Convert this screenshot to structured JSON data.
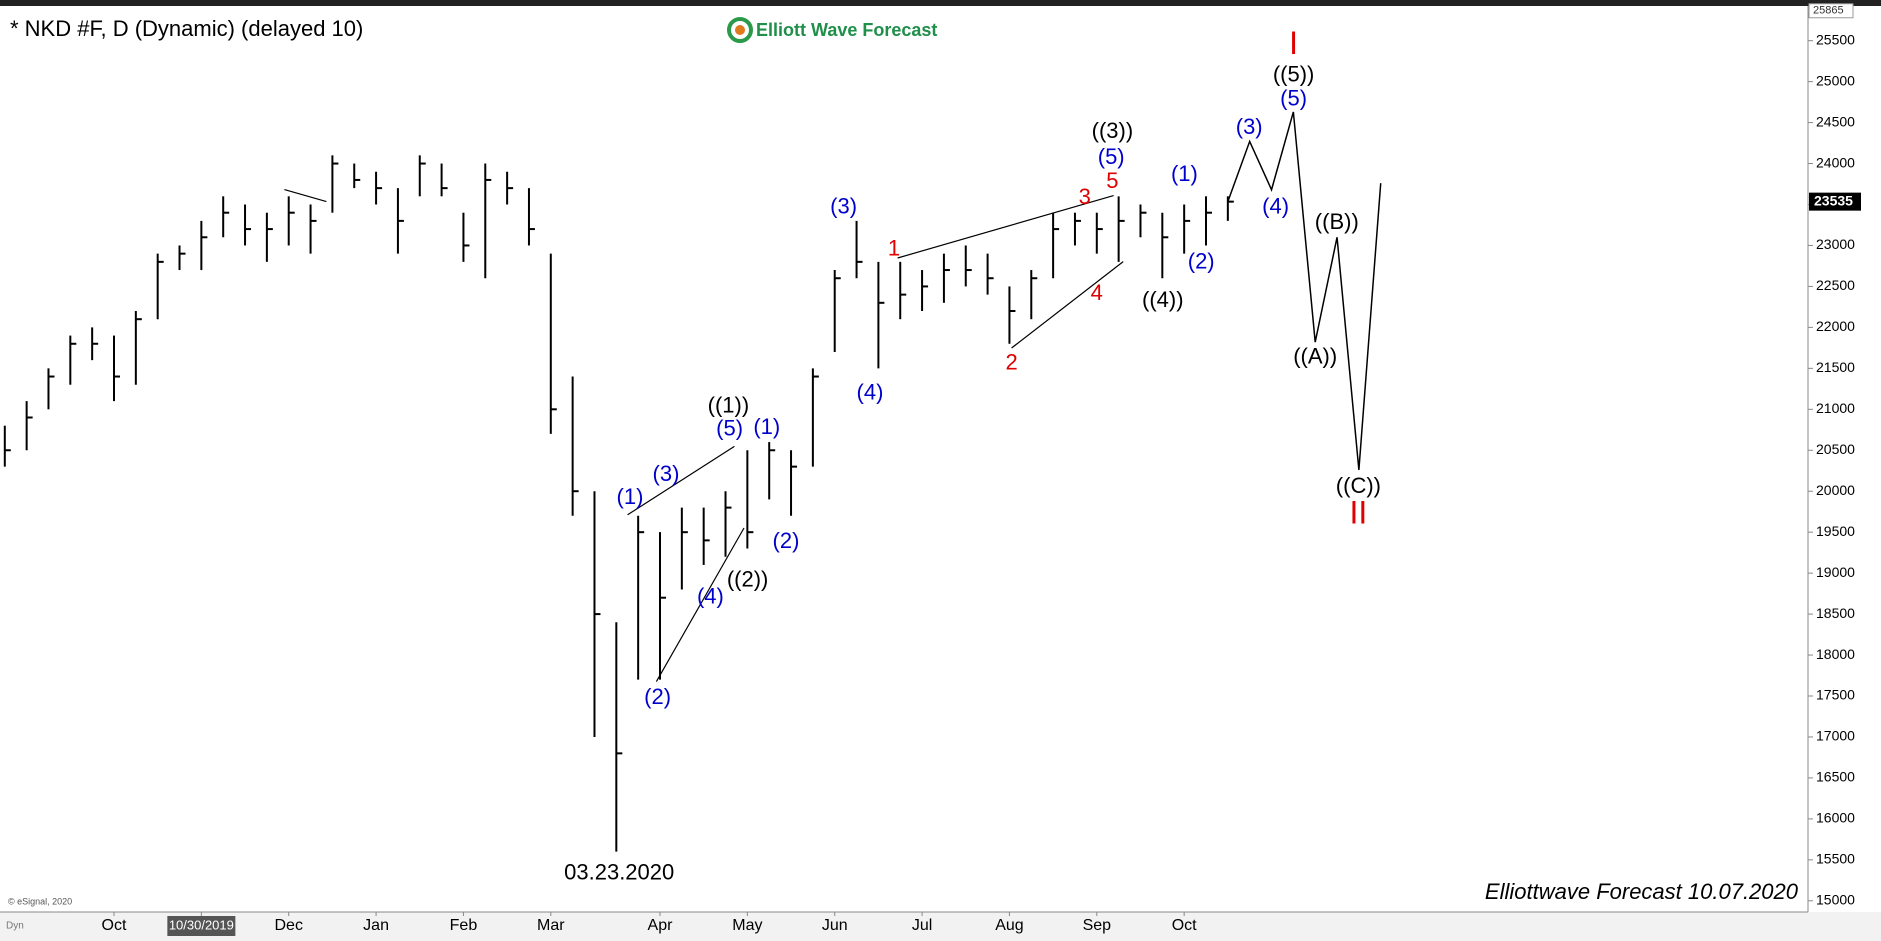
{
  "chart_data": {
    "type": "ohlc",
    "title": "* NKD #F, D (Dynamic) (delayed 10)",
    "logo": "Elliott Wave Forecast",
    "footer": "Elliottwave Forecast 10.07.2020",
    "copyright": "© eSignal, 2020",
    "corner_label": "Dyn",
    "low_date": "03.23.2020",
    "top_price": 25865,
    "bar_color": "#000000",
    "projection_color": "#000000",
    "ylim": [
      14900,
      25850
    ],
    "yticks": [
      15000,
      15500,
      16000,
      16500,
      17000,
      17500,
      18000,
      18500,
      19000,
      19500,
      20000,
      20500,
      21000,
      21500,
      22000,
      22500,
      23000,
      23500,
      24000,
      24500,
      25000,
      25500
    ],
    "categories": [
      null,
      null,
      null,
      null,
      null,
      "Oct",
      null,
      null,
      null,
      "10/30/2019",
      null,
      null,
      null,
      "Dec",
      null,
      null,
      null,
      "Jan",
      null,
      null,
      null,
      "Feb",
      null,
      null,
      null,
      "Mar",
      null,
      null,
      null,
      null,
      "Apr",
      null,
      null,
      null,
      "May",
      null,
      null,
      null,
      "Jun",
      null,
      null,
      null,
      "Jul",
      null,
      null,
      null,
      "Aug",
      null,
      null,
      null,
      "Sep",
      null,
      null,
      null,
      "Oct",
      null,
      null,
      null,
      null,
      null,
      null,
      null,
      null,
      null
    ],
    "high": [
      20800,
      21100,
      21500,
      21900,
      22000,
      21900,
      22200,
      22900,
      23000,
      23300,
      23600,
      23500,
      23400,
      23600,
      23500,
      24100,
      24000,
      23900,
      23700,
      24100,
      24000,
      23400,
      24000,
      23900,
      23700,
      22900,
      21400,
      20000,
      18400,
      19700,
      19500,
      19800,
      19800,
      20000,
      20500,
      20600,
      20500,
      21500,
      22700,
      23300,
      22800,
      22800,
      22700,
      22900,
      23000,
      22900,
      22500,
      22700,
      23400,
      23400,
      23400,
      23600,
      23500,
      23400,
      23500,
      23600,
      23600,
      null,
      null,
      null,
      null,
      null,
      null,
      null
    ],
    "low": [
      20300,
      20500,
      21000,
      21300,
      21600,
      21100,
      21300,
      22100,
      22700,
      22700,
      23100,
      23000,
      22800,
      23000,
      22900,
      23400,
      23700,
      23500,
      22900,
      23600,
      23600,
      22800,
      22600,
      23500,
      23000,
      20700,
      19700,
      17000,
      15600,
      17700,
      17700,
      18800,
      19100,
      19200,
      19300,
      19900,
      19700,
      20300,
      21700,
      22600,
      21500,
      22100,
      22200,
      22300,
      22500,
      22400,
      21800,
      22100,
      22600,
      23000,
      22900,
      22800,
      23100,
      22600,
      22900,
      23000,
      23300,
      null,
      null,
      null,
      null,
      null,
      null,
      null
    ],
    "close": [
      20500,
      20900,
      21400,
      21800,
      21800,
      21400,
      22100,
      22800,
      22900,
      23100,
      23400,
      23200,
      23200,
      23400,
      23300,
      24000,
      23800,
      23700,
      23300,
      24000,
      23700,
      23000,
      23800,
      23700,
      23200,
      21000,
      20000,
      18500,
      16800,
      19500,
      18700,
      19500,
      19400,
      19800,
      19500,
      20500,
      20300,
      21400,
      22600,
      22800,
      22300,
      22400,
      22500,
      22700,
      22700,
      22600,
      22200,
      22600,
      23200,
      23300,
      23200,
      23300,
      23400,
      23100,
      23300,
      23400,
      23535,
      null,
      null,
      null,
      null,
      null,
      null,
      null
    ],
    "projection": [
      null,
      null,
      null,
      null,
      null,
      null,
      null,
      null,
      null,
      null,
      null,
      null,
      null,
      null,
      null,
      null,
      null,
      null,
      null,
      null,
      null,
      null,
      null,
      null,
      null,
      null,
      null,
      null,
      null,
      null,
      null,
      null,
      null,
      null,
      null,
      null,
      null,
      null,
      null,
      null,
      null,
      null,
      null,
      null,
      null,
      null,
      null,
      null,
      null,
      null,
      null,
      null,
      null,
      null,
      null,
      null,
      23535,
      24270,
      23680,
      24630,
      21820,
      23100,
      20260,
      23760
    ],
    "annotations": [
      {
        "text": "(1)",
        "color": "#0000cc"
      },
      {
        "text": "(3)",
        "color": "#0000cc"
      },
      {
        "text": "(5)",
        "color": "#0000cc"
      },
      {
        "text": "((1))",
        "color": "#000000"
      },
      {
        "text": "(2)",
        "color": "#0000cc"
      },
      {
        "text": "(4)",
        "color": "#0000cc"
      },
      {
        "text": "((2))",
        "color": "#000000"
      },
      {
        "text": "(1)",
        "color": "#0000cc"
      },
      {
        "text": "(2)",
        "color": "#0000cc"
      },
      {
        "text": "(3)",
        "color": "#0000cc"
      },
      {
        "text": "(4)",
        "color": "#0000cc"
      },
      {
        "text": "1",
        "color": "#e00000"
      },
      {
        "text": "2",
        "color": "#e00000"
      },
      {
        "text": "3",
        "color": "#e00000"
      },
      {
        "text": "4",
        "color": "#e00000"
      },
      {
        "text": "5",
        "color": "#e00000"
      },
      {
        "text": "(5)",
        "color": "#0000cc"
      },
      {
        "text": "((3))",
        "color": "#000000"
      },
      {
        "text": "(1)",
        "color": "#0000cc"
      },
      {
        "text": "(2)",
        "color": "#0000cc"
      },
      {
        "text": "((4))",
        "color": "#000000"
      },
      {
        "text": "(3)",
        "color": "#0000cc"
      },
      {
        "text": "(4)",
        "color": "#0000cc"
      },
      {
        "text": "(5)",
        "color": "#0000cc"
      },
      {
        "text": "((5))",
        "color": "#000000"
      },
      {
        "text": "I",
        "color": "#e00000"
      },
      {
        "text": "((A))",
        "color": "#000000"
      },
      {
        "text": "((B))",
        "color": "#000000"
      },
      {
        "text": "((C))",
        "color": "#000000"
      },
      {
        "text": "II",
        "color": "#e00000"
      }
    ]
  }
}
